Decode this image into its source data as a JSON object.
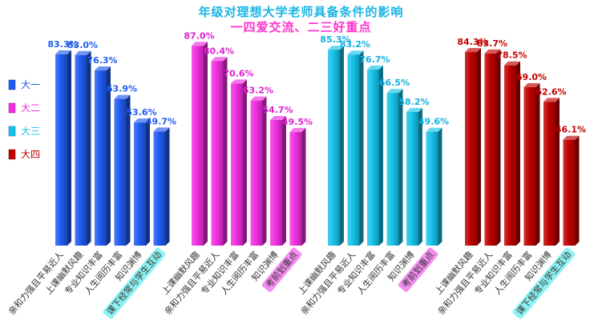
{
  "chart_data": {
    "type": "bar",
    "title": "年级对理想大学老师具备条件的影响",
    "subtitle": "一四爱交流、二三好重点",
    "legend": {
      "placement": "left",
      "entries": [
        {
          "name": "大一",
          "color": "#1f5bf0"
        },
        {
          "name": "大二",
          "color": "#f02ee0"
        },
        {
          "name": "大三",
          "color": "#17c3ea"
        },
        {
          "name": "大四",
          "color": "#c00000"
        }
      ]
    },
    "label_colors": {
      "大一": "#1f5bf0",
      "大二": "#e020d0",
      "大三": "#10b0e0",
      "大四": "#c00000"
    },
    "highlight_colors": {
      "pink": "#f48ef0",
      "cyan": "#8ef2f2"
    },
    "series": [
      {
        "name": "大一",
        "categories": [
          "亲和力强且平易近人",
          "上课幽默风趣",
          "专业知识丰富",
          "人生阅历丰富",
          "知识渊博",
          "课下经常与学生互动"
        ],
        "values": [
          83.3,
          83.0,
          76.3,
          63.9,
          53.6,
          49.7
        ],
        "labels": [
          "83.3%",
          "83.0%",
          "76.3%",
          "63.9%",
          "53.6%",
          "49.7%"
        ],
        "highlight": [
          null,
          null,
          null,
          null,
          null,
          "cyan"
        ]
      },
      {
        "name": "大二",
        "categories": [
          "上课幽默风趣",
          "亲和力强且平易近人",
          "专业知识丰富",
          "人生阅历丰富",
          "知识渊博",
          "考前划重点"
        ],
        "values": [
          87.0,
          80.4,
          70.6,
          63.2,
          54.7,
          49.5
        ],
        "labels": [
          "87.0%",
          "80.4%",
          "70.6%",
          "63.2%",
          "54.7%",
          "49.5%"
        ],
        "highlight": [
          null,
          null,
          null,
          null,
          null,
          "pink"
        ]
      },
      {
        "name": "大三",
        "categories": [
          "上课幽默风趣",
          "亲和力强且平易近人",
          "专业知识丰富",
          "人生阅历丰富",
          "知识渊博",
          "考前划重点"
        ],
        "values": [
          85.3,
          83.2,
          76.7,
          66.5,
          58.2,
          49.6
        ],
        "labels": [
          "85.3%",
          "83.2%",
          "76.7%",
          "66.5%",
          "58.2%",
          "49.6%"
        ],
        "highlight": [
          null,
          null,
          null,
          null,
          null,
          "pink"
        ]
      },
      {
        "name": "大四",
        "categories": [
          "上课幽默风趣",
          "亲和力强且平易近人",
          "专业知识丰富",
          "人生阅历丰富",
          "知识渊博",
          "课下经常与学生互动"
        ],
        "values": [
          84.3,
          83.7,
          78.5,
          69.0,
          62.6,
          46.1
        ],
        "labels": [
          "84.3%",
          "83.7%",
          "78.5%",
          "69.0%",
          "62.6%",
          "46.1%"
        ],
        "highlight": [
          null,
          null,
          null,
          null,
          null,
          "cyan"
        ]
      }
    ],
    "ylim": [
      0,
      100
    ],
    "grid": false
  }
}
